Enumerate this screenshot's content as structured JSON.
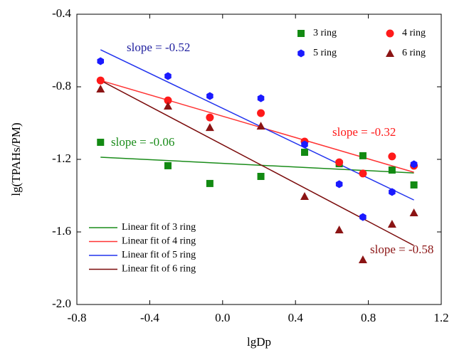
{
  "chart_data": {
    "type": "scatter",
    "xlabel": "lgDp",
    "ylabel": "lg(TPAHs/PM)",
    "xlim": [
      -0.8,
      1.2
    ],
    "ylim": [
      -2.0,
      -0.4
    ],
    "xticks": [
      -0.8,
      -0.4,
      {
        "value": 0,
        "label": "0.0"
      },
      0.4,
      0.8,
      1.2
    ],
    "yticks": [
      {
        "value": -2,
        "label": "-2.0"
      },
      -1.6,
      -1.2,
      -0.8,
      -0.4
    ],
    "x": [
      -0.67,
      -0.3,
      -0.07,
      0.21,
      0.45,
      0.64,
      0.77,
      0.93,
      1.05
    ],
    "series": [
      {
        "name": "3 ring",
        "color": "#128a12",
        "marker": "square",
        "values": [
          -1.106,
          -1.235,
          -1.333,
          -1.294,
          -1.161,
          -1.224,
          -1.18,
          -1.259,
          -1.341
        ]
      },
      {
        "name": "4 ring",
        "color": "#ff1a1a",
        "marker": "circle",
        "values": [
          -0.765,
          -0.875,
          -0.969,
          -0.945,
          -1.102,
          -1.216,
          -1.278,
          -1.184,
          -1.235
        ]
      },
      {
        "name": "5 ring",
        "color": "#1a1aff",
        "marker": "hexagon",
        "values": [
          -0.659,
          -0.741,
          -0.851,
          -0.863,
          -1.118,
          -1.337,
          -1.518,
          -1.38,
          -1.227
        ]
      },
      {
        "name": "6 ring",
        "color": "#8b1414",
        "marker": "triangle",
        "values": [
          -0.812,
          -0.906,
          -1.024,
          -1.016,
          -1.404,
          -1.588,
          -1.753,
          -1.557,
          -1.494
        ]
      }
    ],
    "fits": [
      {
        "name": "Linear fit of 3 ring",
        "color": "#1a8c1a",
        "x": [
          -0.67,
          1.05
        ],
        "values": [
          -1.188,
          -1.275
        ]
      },
      {
        "name": "Linear fit of 4 ring",
        "color": "#ff3333",
        "x": [
          -0.67,
          1.05
        ],
        "values": [
          -0.765,
          -1.271
        ]
      },
      {
        "name": "Linear fit of 5 ring",
        "color": "#2233ee",
        "x": [
          -0.67,
          1.05
        ],
        "values": [
          -0.596,
          -1.424
        ]
      },
      {
        "name": "Linear fit of 6 ring",
        "color": "#7a0a0a",
        "x": [
          -0.67,
          1.05
        ],
        "values": [
          -0.765,
          -1.675
        ]
      }
    ],
    "annotations": [
      {
        "text": "slope = -0.52",
        "color": "#1f1f9f"
      },
      {
        "text": "slope = -0.06",
        "color": "#1a8c1a"
      },
      {
        "text": "slope = -0.32",
        "color": "#ff1a1a"
      },
      {
        "text": "slope = -0.58",
        "color": "#8b1414"
      }
    ]
  }
}
